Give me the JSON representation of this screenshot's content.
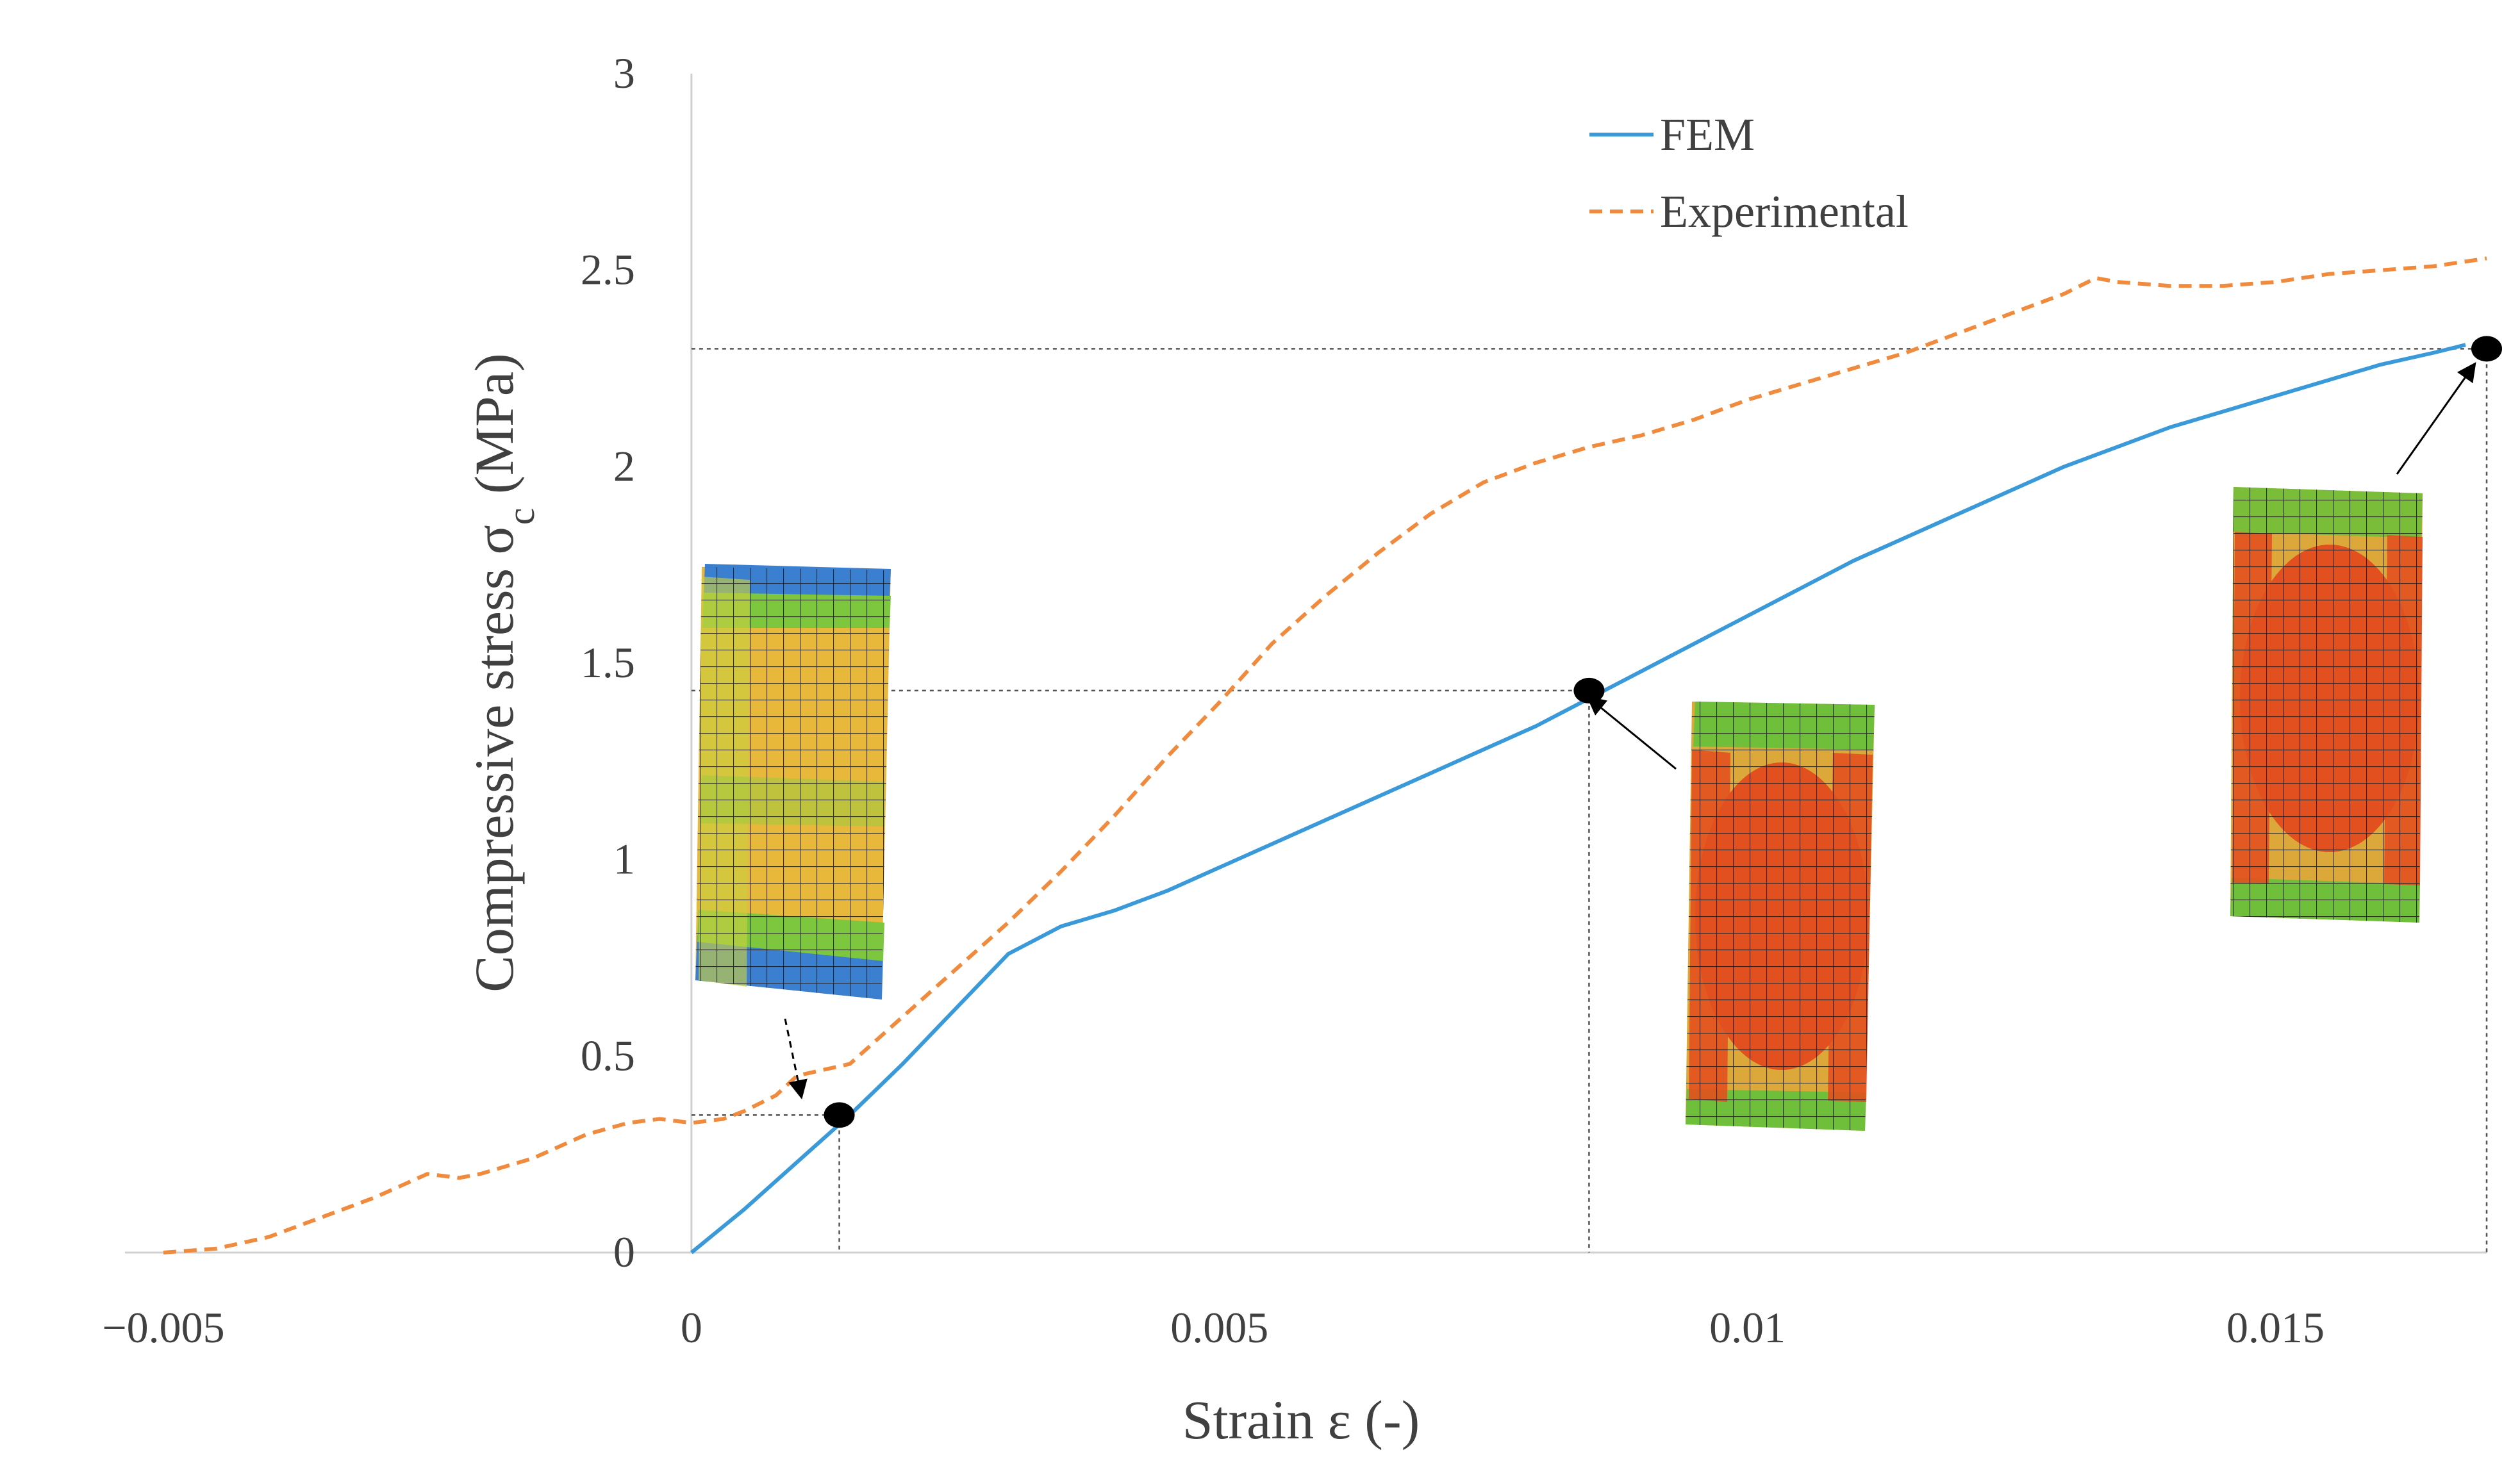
{
  "chart_data": {
    "type": "line",
    "xlabel": "Strain ε (-)",
    "ylabel_main": "Compressive stress σ",
    "ylabel_sub": "c",
    "ylabel_unit": " (MPa)",
    "xlim": [
      -0.005,
      0.017
    ],
    "ylim": [
      0,
      3
    ],
    "x_ticks": [
      -0.005,
      0,
      0.005,
      0.01,
      0.015
    ],
    "x_tick_labels": [
      "−0.005",
      "0",
      "0.005",
      "0.01",
      "0.015"
    ],
    "y_ticks": [
      0,
      0.5,
      1,
      1.5,
      2,
      2.5,
      3
    ],
    "y_tick_labels": [
      "0",
      "0.5",
      "1",
      "1.5",
      "2",
      "2.5",
      "3"
    ],
    "grid": false,
    "legend_position": "top-right",
    "series": [
      {
        "name": "FEM",
        "color": "#3A9AD9",
        "style": "solid",
        "x": [
          0,
          0.0005,
          0.001,
          0.0015,
          0.002,
          0.0025,
          0.003,
          0.0035,
          0.004,
          0.0045,
          0.005,
          0.0055,
          0.006,
          0.0065,
          0.007,
          0.0075,
          0.008,
          0.0085,
          0.009,
          0.0095,
          0.01,
          0.0105,
          0.011,
          0.0115,
          0.012,
          0.0125,
          0.013,
          0.0135,
          0.014,
          0.0145,
          0.015,
          0.0155,
          0.016,
          0.0165,
          0.0168
        ],
        "y": [
          0,
          0.11,
          0.23,
          0.35,
          0.48,
          0.62,
          0.76,
          0.83,
          0.87,
          0.92,
          0.98,
          1.04,
          1.1,
          1.16,
          1.22,
          1.28,
          1.34,
          1.41,
          1.48,
          1.55,
          1.62,
          1.69,
          1.76,
          1.82,
          1.88,
          1.94,
          2.0,
          2.05,
          2.1,
          2.14,
          2.18,
          2.22,
          2.26,
          2.29,
          2.31
        ]
      },
      {
        "name": "Experimental",
        "color": "#F08A3C",
        "style": "dashed",
        "x": [
          -0.005,
          -0.0045,
          -0.004,
          -0.0035,
          -0.003,
          -0.0025,
          -0.0022,
          -0.002,
          -0.0015,
          -0.001,
          -0.0006,
          -0.0003,
          0,
          0.0003,
          0.0005,
          0.0008,
          0.001,
          0.0015,
          0.002,
          0.0025,
          0.003,
          0.0035,
          0.004,
          0.0045,
          0.005,
          0.0055,
          0.006,
          0.0065,
          0.007,
          0.0075,
          0.008,
          0.0085,
          0.009,
          0.0095,
          0.01,
          0.0105,
          0.011,
          0.0115,
          0.012,
          0.0125,
          0.013,
          0.0133,
          0.0135,
          0.014,
          0.0145,
          0.015,
          0.0155,
          0.016,
          0.0165,
          0.017
        ],
        "y": [
          0,
          0.01,
          0.04,
          0.09,
          0.14,
          0.2,
          0.19,
          0.2,
          0.24,
          0.3,
          0.33,
          0.34,
          0.33,
          0.34,
          0.36,
          0.4,
          0.45,
          0.48,
          0.6,
          0.72,
          0.84,
          0.97,
          1.11,
          1.26,
          1.4,
          1.55,
          1.67,
          1.78,
          1.88,
          1.96,
          2.01,
          2.05,
          2.08,
          2.12,
          2.17,
          2.21,
          2.25,
          2.29,
          2.34,
          2.39,
          2.44,
          2.48,
          2.47,
          2.46,
          2.46,
          2.47,
          2.49,
          2.5,
          2.51,
          2.53
        ]
      }
    ],
    "highlight_points": [
      {
        "x": 0.0014,
        "y": 0.35
      },
      {
        "x": 0.0085,
        "y": 1.43
      },
      {
        "x": 0.017,
        "y": 2.3
      }
    ]
  },
  "insets": [
    {
      "name": "fem-specimen-1-image",
      "description_icon": "fem-mesh-specimen-icon",
      "colors": [
        "#E8C040",
        "#6FBF3A",
        "#3A7FD0",
        "#D44020"
      ]
    },
    {
      "name": "fem-specimen-2-image",
      "description_icon": "fem-mesh-specimen-icon",
      "colors": [
        "#E2501F",
        "#D8A838",
        "#6FBF3A",
        "#D63018"
      ]
    },
    {
      "name": "fem-specimen-3-image",
      "description_icon": "fem-mesh-specimen-icon",
      "colors": [
        "#E2501F",
        "#D8A838",
        "#6FBF3A",
        "#D63018"
      ]
    }
  ]
}
